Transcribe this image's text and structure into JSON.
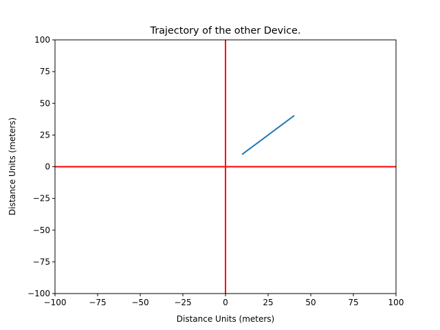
{
  "chart_data": {
    "type": "line",
    "title": "Trajectory of the other Device.",
    "xlabel": "Distance Units (meters)",
    "ylabel": "Distance Units (meters)",
    "xlim": [
      -100,
      100
    ],
    "ylim": [
      -100,
      100
    ],
    "xticks": [
      -100,
      -75,
      -50,
      -25,
      0,
      25,
      50,
      75,
      100
    ],
    "yticks": [
      -100,
      -75,
      -50,
      -25,
      0,
      25,
      50,
      75,
      100
    ],
    "xtick_labels": [
      "−100",
      "−75",
      "−50",
      "−25",
      "0",
      "25",
      "50",
      "75",
      "100"
    ],
    "ytick_labels": [
      "−100",
      "−75",
      "−50",
      "−25",
      "0",
      "25",
      "50",
      "75",
      "100"
    ],
    "grid": false,
    "reference_lines": [
      {
        "orientation": "vertical",
        "value": 0,
        "color": "#ff0000"
      },
      {
        "orientation": "horizontal",
        "value": 0,
        "color": "#ff0000"
      }
    ],
    "series": [
      {
        "x": [
          10,
          40
        ],
        "y": [
          10,
          40
        ],
        "color": "#1f77b4"
      }
    ]
  }
}
